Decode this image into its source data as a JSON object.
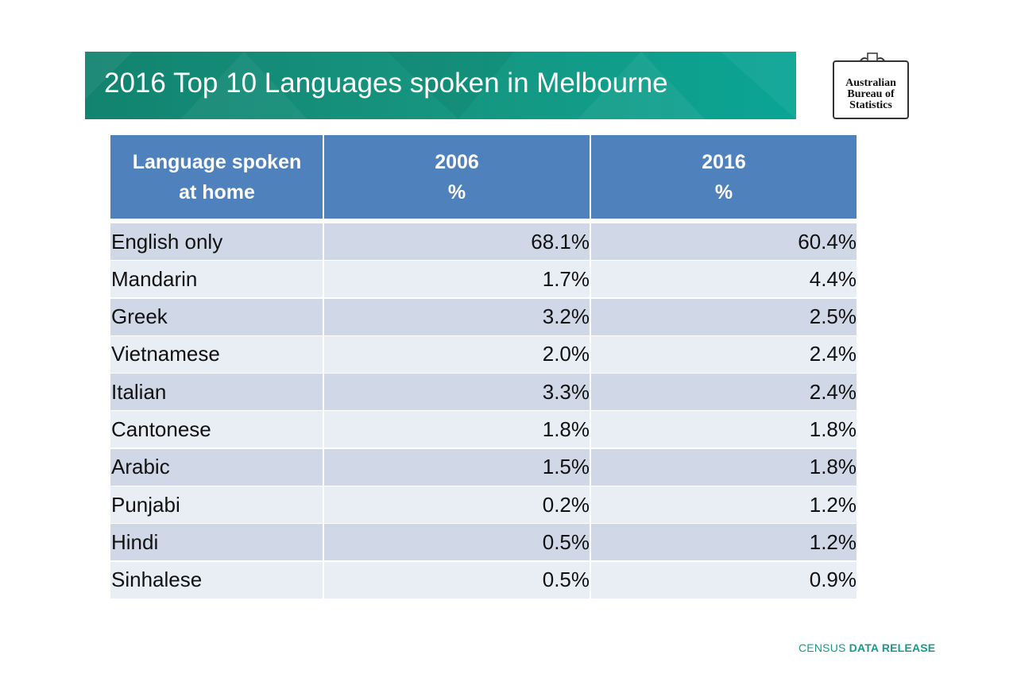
{
  "header": {
    "title": "2016 Top 10 Languages spoken in Melbourne"
  },
  "logo": {
    "lines": [
      "Australian",
      "Bureau of",
      "Statistics"
    ]
  },
  "table": {
    "header": [
      [
        "Language spoken",
        "at home"
      ],
      [
        "2006",
        "%"
      ],
      [
        "2016",
        "%"
      ]
    ],
    "rows": [
      [
        "English only",
        "68.1%",
        "60.4%"
      ],
      [
        "Mandarin",
        "1.7%",
        "4.4%"
      ],
      [
        "Greek",
        "3.2%",
        "2.5%"
      ],
      [
        "Vietnamese",
        "2.0%",
        "2.4%"
      ],
      [
        "Italian",
        "3.3%",
        "2.4%"
      ],
      [
        "Cantonese",
        "1.8%",
        "1.8%"
      ],
      [
        "Arabic",
        "1.5%",
        "1.8%"
      ],
      [
        "Punjabi",
        "0.2%",
        "1.2%"
      ],
      [
        "Hindi",
        "0.5%",
        "1.2%"
      ],
      [
        "Sinhalese",
        "0.5%",
        "0.9%"
      ]
    ]
  },
  "footer": {
    "normal": "CENSUS",
    "bold": "DATA RELEASE"
  }
}
